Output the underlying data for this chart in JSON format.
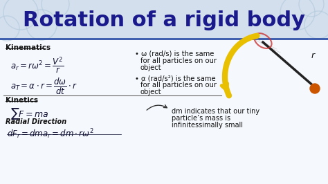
{
  "title": "Rotation of a rigid body",
  "title_color": "#1a1a8c",
  "title_fontsize": 22,
  "bg_color": "#f0f4f8",
  "header_bg": "#d0dce8",
  "slide_bg": "#ffffff",
  "kinematics_label": "Kinematics",
  "kinetics_label": "Kinetics",
  "radial_label": "Radial Direction",
  "eq1": "$a_r = r\\omega^2 = \\dfrac{V^2}{r}$",
  "eq2": "$a_T = \\alpha \\cdot r = \\dfrac{d\\omega}{dt} \\cdot r$",
  "eq3": "$\\sum F = ma$",
  "eq4": "$dF_r = dma_r = dm \\cdot r\\omega^2$",
  "bullet1_bold": "\\u03c9 (rad/s) is the same",
  "bullet1_rest": "for all particles on our\nobject",
  "bullet2_bold": "\\u03b1 (rad/s\\u00b2) is the same",
  "bullet2_rest": "for all particles on our\nobject",
  "dm_text": "dm indicates that our tiny\nparticle’s mass is\ninfinitessimally small",
  "line_color": "#555555",
  "text_color": "#111111",
  "accent_color": "#1a1a8c"
}
